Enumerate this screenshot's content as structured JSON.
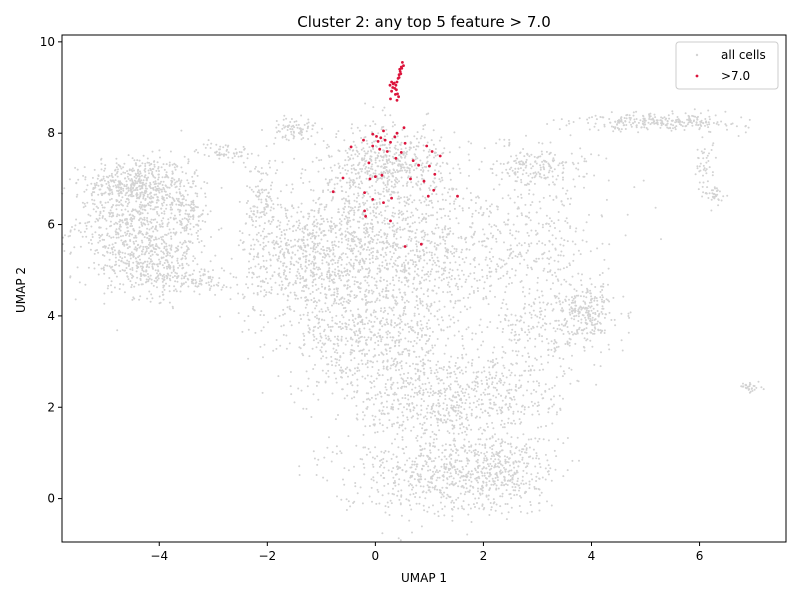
{
  "chart_data": {
    "type": "scatter",
    "title": "Cluster 2: any top 5 feature > 7.0",
    "xlabel": "UMAP 1",
    "ylabel": "UMAP 2",
    "xlim": [
      -5.8,
      7.6
    ],
    "ylim": [
      -0.95,
      10.15
    ],
    "xticks": [
      -4,
      -2,
      0,
      2,
      4,
      6
    ],
    "yticks": [
      0,
      2,
      4,
      6,
      8,
      10
    ],
    "grid": false,
    "legend_position": "top-right",
    "series": [
      {
        "name": "all cells",
        "color": "#d3d3d3",
        "regions": [
          {
            "cx": -4.4,
            "cy": 6.9,
            "sx": 0.45,
            "sy": 0.3,
            "w": 0.05
          },
          {
            "cx": -4.5,
            "cy": 6.0,
            "sx": 0.55,
            "sy": 0.6,
            "w": 0.08
          },
          {
            "cx": -4.1,
            "cy": 5.1,
            "sx": 0.45,
            "sy": 0.35,
            "w": 0.04
          },
          {
            "cx": -3.5,
            "cy": 6.3,
            "sx": 0.2,
            "sy": 0.45,
            "w": 0.02
          },
          {
            "cx": -3.2,
            "cy": 4.8,
            "sx": 0.25,
            "sy": 0.15,
            "w": 0.01
          },
          {
            "cx": -2.1,
            "cy": 6.4,
            "sx": 0.15,
            "sy": 0.55,
            "w": 0.015
          },
          {
            "cx": -1.5,
            "cy": 8.1,
            "sx": 0.2,
            "sy": 0.12,
            "w": 0.01
          },
          {
            "cx": -2.8,
            "cy": 7.6,
            "sx": 0.25,
            "sy": 0.1,
            "w": 0.008
          },
          {
            "cx": -1.4,
            "cy": 5.2,
            "sx": 0.55,
            "sy": 0.7,
            "w": 0.07
          },
          {
            "cx": -0.3,
            "cy": 5.6,
            "sx": 0.7,
            "sy": 1.0,
            "w": 0.11
          },
          {
            "cx": 0.3,
            "cy": 7.3,
            "sx": 0.55,
            "sy": 0.45,
            "w": 0.06
          },
          {
            "cx": 1.0,
            "cy": 5.1,
            "sx": 0.55,
            "sy": 0.8,
            "w": 0.05
          },
          {
            "cx": 0.0,
            "cy": 3.5,
            "sx": 0.8,
            "sy": 0.6,
            "w": 0.07
          },
          {
            "cx": 1.0,
            "cy": 2.1,
            "sx": 0.8,
            "sy": 0.6,
            "w": 0.07
          },
          {
            "cx": 1.1,
            "cy": 0.5,
            "sx": 0.9,
            "sy": 0.45,
            "w": 0.07
          },
          {
            "cx": 2.3,
            "cy": 0.6,
            "sx": 0.5,
            "sy": 0.4,
            "w": 0.04
          },
          {
            "cx": 2.5,
            "cy": 2.4,
            "sx": 0.6,
            "sy": 0.5,
            "w": 0.03
          },
          {
            "cx": 3.1,
            "cy": 3.7,
            "sx": 0.5,
            "sy": 0.5,
            "w": 0.025
          },
          {
            "cx": 3.9,
            "cy": 4.1,
            "sx": 0.25,
            "sy": 0.3,
            "w": 0.03
          },
          {
            "cx": 2.7,
            "cy": 5.6,
            "sx": 0.8,
            "sy": 0.7,
            "w": 0.05
          },
          {
            "cx": 3.0,
            "cy": 7.3,
            "sx": 0.45,
            "sy": 0.25,
            "w": 0.025
          },
          {
            "cx": 5.3,
            "cy": 8.25,
            "sx": 0.75,
            "sy": 0.1,
            "w": 0.035
          },
          {
            "cx": 6.1,
            "cy": 7.3,
            "sx": 0.1,
            "sy": 0.35,
            "w": 0.006
          },
          {
            "cx": 6.3,
            "cy": 6.65,
            "sx": 0.08,
            "sy": 0.08,
            "w": 0.004
          },
          {
            "cx": 6.95,
            "cy": 2.42,
            "sx": 0.16,
            "sy": 0.06,
            "w": 0.004
          }
        ]
      },
      {
        "name": ">7.0",
        "color": "#dc143c",
        "points": [
          [
            0.5,
            9.55
          ],
          [
            0.48,
            9.45
          ],
          [
            0.46,
            9.35
          ],
          [
            0.44,
            9.28
          ],
          [
            0.42,
            9.2
          ],
          [
            0.4,
            9.12
          ],
          [
            0.38,
            9.05
          ],
          [
            0.33,
            9.08
          ],
          [
            0.36,
            8.98
          ],
          [
            0.3,
            8.92
          ],
          [
            0.43,
            8.8
          ],
          [
            0.4,
            8.72
          ],
          [
            0.28,
            8.75
          ],
          [
            0.52,
            9.48
          ],
          [
            0.45,
            9.4
          ],
          [
            0.32,
            9.0
          ],
          [
            0.35,
            9.1
          ],
          [
            0.39,
            8.95
          ],
          [
            0.27,
            9.05
          ],
          [
            0.47,
            9.3
          ],
          [
            0.41,
            8.86
          ],
          [
            0.3,
            9.12
          ],
          [
            0.37,
            8.85
          ],
          [
            0.44,
            9.22
          ],
          [
            0.49,
            9.42
          ],
          [
            -0.05,
            7.98
          ],
          [
            0.02,
            7.93
          ],
          [
            0.1,
            7.9
          ],
          [
            0.18,
            7.85
          ],
          [
            0.28,
            7.8
          ],
          [
            0.36,
            7.92
          ],
          [
            0.4,
            8.0
          ],
          [
            0.53,
            8.12
          ],
          [
            0.15,
            8.05
          ],
          [
            -0.22,
            7.85
          ],
          [
            -0.45,
            7.7
          ],
          [
            -0.05,
            7.72
          ],
          [
            0.08,
            7.65
          ],
          [
            0.22,
            7.6
          ],
          [
            0.48,
            7.58
          ],
          [
            0.55,
            7.78
          ],
          [
            0.95,
            7.72
          ],
          [
            1.05,
            7.6
          ],
          [
            1.2,
            7.5
          ],
          [
            -0.12,
            7.35
          ],
          [
            0.7,
            7.4
          ],
          [
            0.8,
            7.3
          ],
          [
            1.0,
            7.28
          ],
          [
            1.1,
            7.1
          ],
          [
            0.12,
            7.08
          ],
          [
            -0.6,
            7.02
          ],
          [
            -0.1,
            7.0
          ],
          [
            0.0,
            7.05
          ],
          [
            0.65,
            7.0
          ],
          [
            0.9,
            6.95
          ],
          [
            1.08,
            6.75
          ],
          [
            -0.78,
            6.72
          ],
          [
            -0.2,
            6.7
          ],
          [
            0.3,
            6.58
          ],
          [
            0.98,
            6.62
          ],
          [
            1.52,
            6.62
          ],
          [
            -0.05,
            6.55
          ],
          [
            0.15,
            6.48
          ],
          [
            -0.2,
            6.3
          ],
          [
            -0.18,
            6.18
          ],
          [
            0.28,
            6.08
          ],
          [
            0.55,
            5.52
          ],
          [
            0.85,
            5.57
          ],
          [
            0.38,
            7.45
          ],
          [
            0.05,
            7.82
          ]
        ]
      }
    ]
  }
}
